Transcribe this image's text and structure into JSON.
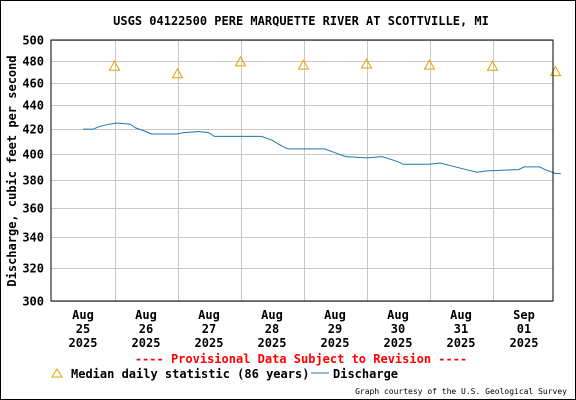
{
  "chart_data": {
    "type": "line",
    "title": "USGS 04122500 PERE MARQUETTE RIVER AT SCOTTVILLE, MI",
    "ylabel": "Discharge, cubic feet per second",
    "xlabel": "",
    "y_scale": "log",
    "ylim": [
      300,
      500
    ],
    "y_ticks": [
      300,
      320,
      340,
      360,
      380,
      400,
      420,
      440,
      460,
      480,
      500
    ],
    "x_ticks": [
      {
        "month": "Aug",
        "day": "25",
        "year": "2025",
        "date": "2025-08-25"
      },
      {
        "month": "Aug",
        "day": "26",
        "year": "2025",
        "date": "2025-08-26"
      },
      {
        "month": "Aug",
        "day": "27",
        "year": "2025",
        "date": "2025-08-27"
      },
      {
        "month": "Aug",
        "day": "28",
        "year": "2025",
        "date": "2025-08-28"
      },
      {
        "month": "Aug",
        "day": "29",
        "year": "2025",
        "date": "2025-08-29"
      },
      {
        "month": "Aug",
        "day": "30",
        "year": "2025",
        "date": "2025-08-30"
      },
      {
        "month": "Aug",
        "day": "31",
        "year": "2025",
        "date": "2025-08-31"
      },
      {
        "month": "Sep",
        "day": "01",
        "year": "2025",
        "date": "2025-09-01"
      }
    ],
    "grid": true,
    "series": [
      {
        "name": "Median daily statistic (86 years)",
        "marker": "triangle",
        "color": "#e6a000",
        "points": [
          {
            "x": "2025-08-25 12:00",
            "y": 475
          },
          {
            "x": "2025-08-26 12:00",
            "y": 468
          },
          {
            "x": "2025-08-27 12:00",
            "y": 479
          },
          {
            "x": "2025-08-28 12:00",
            "y": 476
          },
          {
            "x": "2025-08-29 12:00",
            "y": 477
          },
          {
            "x": "2025-08-30 12:00",
            "y": 476
          },
          {
            "x": "2025-08-31 12:00",
            "y": 475
          },
          {
            "x": "2025-09-01 12:00",
            "y": 470
          }
        ]
      },
      {
        "name": "Discharge",
        "marker": "line",
        "color": "#1f77b4",
        "points": [
          {
            "x": "2025-08-25 00:00",
            "y": 420
          },
          {
            "x": "2025-08-25 04:00",
            "y": 420
          },
          {
            "x": "2025-08-25 06:00",
            "y": 422
          },
          {
            "x": "2025-08-25 10:00",
            "y": 424
          },
          {
            "x": "2025-08-25 13:00",
            "y": 425
          },
          {
            "x": "2025-08-25 18:00",
            "y": 424
          },
          {
            "x": "2025-08-25 20:00",
            "y": 421
          },
          {
            "x": "2025-08-26 00:00",
            "y": 418
          },
          {
            "x": "2025-08-26 02:00",
            "y": 416
          },
          {
            "x": "2025-08-26 12:00",
            "y": 416
          },
          {
            "x": "2025-08-26 14:00",
            "y": 417
          },
          {
            "x": "2025-08-26 20:00",
            "y": 418
          },
          {
            "x": "2025-08-27 00:00",
            "y": 417
          },
          {
            "x": "2025-08-27 02:00",
            "y": 414
          },
          {
            "x": "2025-08-27 20:00",
            "y": 414
          },
          {
            "x": "2025-08-28 00:00",
            "y": 411
          },
          {
            "x": "2025-08-28 04:00",
            "y": 406
          },
          {
            "x": "2025-08-28 06:00",
            "y": 404
          },
          {
            "x": "2025-08-28 20:00",
            "y": 404
          },
          {
            "x": "2025-08-29 00:00",
            "y": 401
          },
          {
            "x": "2025-08-29 04:00",
            "y": 398
          },
          {
            "x": "2025-08-29 12:00",
            "y": 397
          },
          {
            "x": "2025-08-29 18:00",
            "y": 398
          },
          {
            "x": "2025-08-30 00:00",
            "y": 394
          },
          {
            "x": "2025-08-30 02:00",
            "y": 392
          },
          {
            "x": "2025-08-30 12:00",
            "y": 392
          },
          {
            "x": "2025-08-30 16:00",
            "y": 393
          },
          {
            "x": "2025-08-31 00:00",
            "y": 389
          },
          {
            "x": "2025-08-31 06:00",
            "y": 386
          },
          {
            "x": "2025-08-31 10:00",
            "y": 387
          },
          {
            "x": "2025-08-31 22:00",
            "y": 388
          },
          {
            "x": "2025-09-01 00:00",
            "y": 390
          },
          {
            "x": "2025-09-01 06:00",
            "y": 390
          },
          {
            "x": "2025-09-01 08:00",
            "y": 388
          },
          {
            "x": "2025-09-01 12:00",
            "y": 385
          },
          {
            "x": "2025-09-01 14:00",
            "y": 385
          }
        ]
      }
    ],
    "provisional_note": "---- Provisional Data Subject to Revision ----",
    "credit": "Graph courtesy of the U.S. Geological Survey"
  }
}
